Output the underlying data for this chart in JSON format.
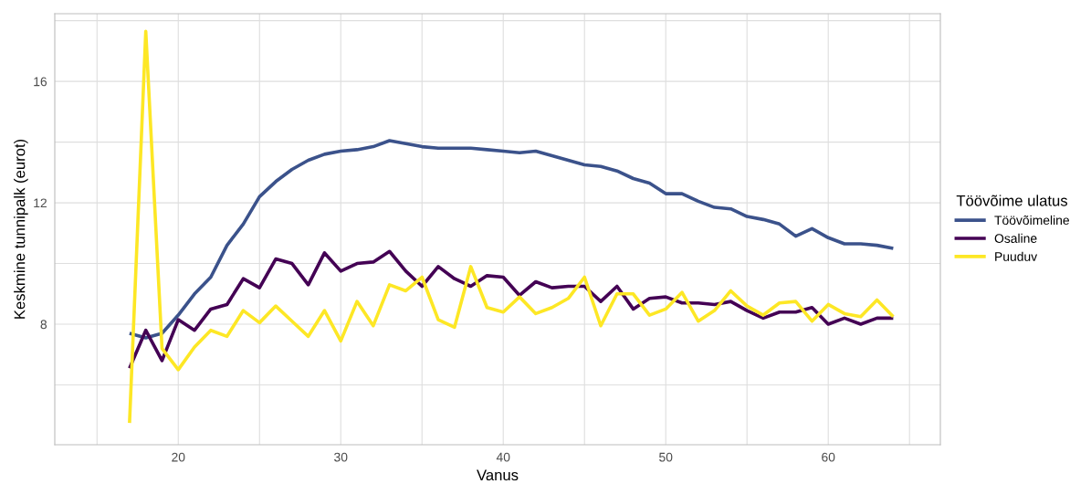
{
  "chart_data": {
    "type": "line",
    "xlabel": "Vanus",
    "ylabel": "Keskmine tunnipalk (eurot)",
    "legend_title": "Töövõime ulatus",
    "legend": "right",
    "grid": true,
    "line_style": "solid",
    "x": [
      17,
      18,
      19,
      20,
      21,
      22,
      23,
      24,
      25,
      26,
      27,
      28,
      29,
      30,
      31,
      32,
      33,
      34,
      35,
      36,
      37,
      38,
      39,
      40,
      41,
      42,
      43,
      44,
      45,
      46,
      47,
      48,
      49,
      50,
      51,
      52,
      53,
      54,
      55,
      56,
      57,
      58,
      59,
      60,
      61,
      62,
      63,
      64
    ],
    "xlim": [
      12.4,
      66.9
    ],
    "xticks": [
      {
        "value": 15,
        "label": null
      },
      20,
      {
        "value": 25,
        "label": null
      },
      30,
      {
        "value": 35,
        "label": null
      },
      40,
      {
        "value": 45,
        "label": null
      },
      50,
      {
        "value": 55,
        "label": null
      },
      60,
      {
        "value": 65,
        "label": null
      }
    ],
    "ylim": [
      4.03,
      18.23
    ],
    "yticks": [
      {
        "value": 6,
        "label": null
      },
      8,
      {
        "value": 10,
        "label": null
      },
      12,
      {
        "value": 14,
        "label": null
      },
      16,
      {
        "value": 18,
        "label": null
      }
    ],
    "series": [
      {
        "name": "Töövõimeline",
        "color": "#3b528b",
        "values": [
          7.7,
          7.55,
          7.7,
          8.3,
          9.0,
          9.55,
          10.6,
          11.3,
          12.2,
          12.7,
          13.1,
          13.4,
          13.6,
          13.7,
          13.75,
          13.85,
          14.05,
          13.95,
          13.85,
          13.8,
          13.8,
          13.8,
          13.75,
          13.7,
          13.65,
          13.7,
          13.55,
          13.4,
          13.25,
          13.2,
          13.05,
          12.8,
          12.65,
          12.3,
          12.3,
          12.05,
          11.85,
          11.8,
          11.55,
          11.45,
          11.3,
          10.9,
          11.15,
          10.85,
          10.65,
          10.65,
          10.6,
          10.5
        ]
      },
      {
        "name": "Osaline",
        "color": "#440154",
        "values": [
          6.55,
          7.8,
          6.8,
          8.15,
          7.8,
          8.5,
          8.65,
          9.5,
          9.2,
          10.15,
          10.0,
          9.3,
          10.35,
          9.75,
          10.0,
          10.05,
          10.4,
          9.75,
          9.25,
          9.9,
          9.5,
          9.25,
          9.6,
          9.55,
          8.95,
          9.4,
          9.2,
          9.25,
          9.25,
          8.75,
          9.25,
          8.5,
          8.85,
          8.9,
          8.7,
          8.7,
          8.65,
          8.75,
          8.45,
          8.2,
          8.4,
          8.4,
          8.55,
          8.0,
          8.2,
          8.0,
          8.2,
          8.2
        ]
      },
      {
        "name": "Puuduv",
        "color": "#fde725",
        "values": [
          4.75,
          17.65,
          7.2,
          6.5,
          7.25,
          7.8,
          7.6,
          8.45,
          8.05,
          8.6,
          8.1,
          7.6,
          8.45,
          7.45,
          8.75,
          7.95,
          9.3,
          9.1,
          9.55,
          8.15,
          7.9,
          9.9,
          8.55,
          8.4,
          8.9,
          8.35,
          8.55,
          8.85,
          9.55,
          7.95,
          9.0,
          9.0,
          8.3,
          8.5,
          9.05,
          8.1,
          8.45,
          9.1,
          8.6,
          8.3,
          8.7,
          8.75,
          8.1,
          8.65,
          8.35,
          8.25,
          8.8,
          8.25
        ]
      }
    ]
  }
}
